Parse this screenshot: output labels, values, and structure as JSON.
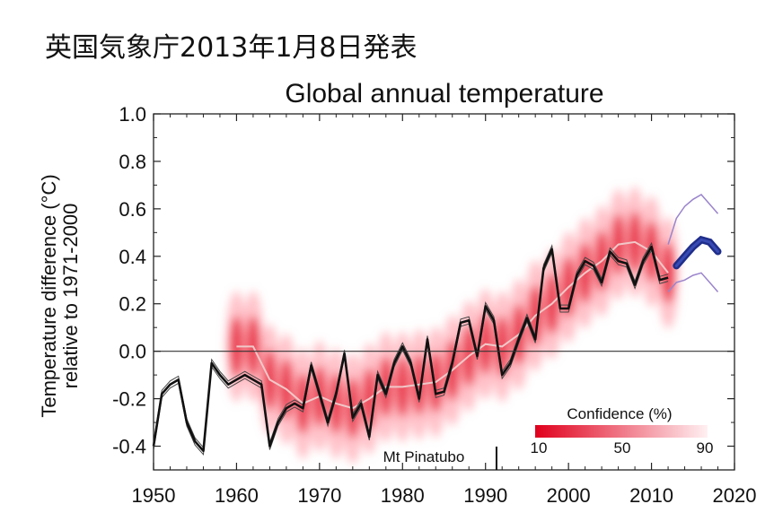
{
  "header": {
    "text": "英国気象庁2013年1月8日発表"
  },
  "chart_data": {
    "type": "line",
    "title": "Global annual temperature",
    "xlabel": "",
    "ylabel": "Temperature difference (°C) relative to 1971-2000",
    "ylabel_lines": [
      "Temperature difference (°C)",
      "relative to 1971-2000"
    ],
    "xlim": [
      1950,
      2020
    ],
    "ylim": [
      -0.5,
      1.0
    ],
    "x_ticks": [
      1950,
      1960,
      1970,
      1980,
      1990,
      2000,
      2010,
      2020
    ],
    "x_tick_labels": [
      "1950",
      "1960",
      "1970",
      "1980",
      "1990",
      "2000",
      "2010",
      "2020"
    ],
    "y_ticks": [
      -0.4,
      -0.2,
      0.0,
      0.2,
      0.4,
      0.6,
      0.8,
      1.0
    ],
    "y_tick_labels": [
      "-0.4",
      "-0.2",
      "0.0",
      "0.2",
      "0.4",
      "0.6",
      "0.8",
      "1.0"
    ],
    "zero_line": 0.0,
    "grid": false,
    "series": [
      {
        "kind": "observations",
        "color": "#111111",
        "x": [
          1950,
          1951,
          1952,
          1953,
          1954,
          1955,
          1956,
          1957,
          1958,
          1959,
          1960,
          1961,
          1962,
          1963,
          1964,
          1965,
          1966,
          1967,
          1968,
          1969,
          1970,
          1971,
          1972,
          1973,
          1974,
          1975,
          1976,
          1977,
          1978,
          1979,
          1980,
          1981,
          1982,
          1983,
          1984,
          1985,
          1986,
          1987,
          1988,
          1989,
          1990,
          1991,
          1992,
          1993,
          1994,
          1995,
          1996,
          1997,
          1998,
          1999,
          2000,
          2001,
          2002,
          2003,
          2004,
          2005,
          2006,
          2007,
          2008,
          2009,
          2010,
          2011,
          2012
        ],
        "y": [
          -0.4,
          -0.18,
          -0.14,
          -0.12,
          -0.3,
          -0.38,
          -0.42,
          -0.05,
          -0.1,
          -0.14,
          -0.12,
          -0.1,
          -0.12,
          -0.14,
          -0.4,
          -0.3,
          -0.24,
          -0.22,
          -0.24,
          -0.06,
          -0.18,
          -0.3,
          -0.18,
          -0.01,
          -0.28,
          -0.22,
          -0.36,
          -0.1,
          -0.18,
          -0.05,
          0.02,
          -0.05,
          -0.2,
          0.05,
          -0.18,
          -0.17,
          -0.05,
          0.12,
          0.13,
          -0.02,
          0.19,
          0.13,
          -0.1,
          -0.05,
          0.05,
          0.14,
          0.05,
          0.35,
          0.43,
          0.18,
          0.18,
          0.32,
          0.38,
          0.36,
          0.29,
          0.42,
          0.38,
          0.37,
          0.28,
          0.38,
          0.44,
          0.3,
          0.31
        ]
      },
      {
        "kind": "decadal-forecast",
        "color": "#4a5fd0",
        "x": [
          2013,
          2014,
          2015,
          2016,
          2017,
          2018
        ],
        "y": [
          0.36,
          0.4,
          0.44,
          0.47,
          0.46,
          0.42
        ]
      },
      {
        "kind": "forecast-range-upper",
        "color": "#9a84cc",
        "x": [
          2012,
          2013,
          2014,
          2015,
          2016,
          2017,
          2018
        ],
        "y": [
          0.45,
          0.56,
          0.61,
          0.64,
          0.66,
          0.62,
          0.58
        ]
      },
      {
        "kind": "forecast-range-lower",
        "color": "#9a84cc",
        "x": [
          2012,
          2013,
          2014,
          2015,
          2016,
          2017,
          2018
        ],
        "y": [
          0.25,
          0.29,
          0.3,
          0.32,
          0.33,
          0.29,
          0.25
        ]
      }
    ],
    "hindcast_mean": {
      "color": "#f0c8c8",
      "x": [
        1960,
        1962,
        1964,
        1966,
        1968,
        1970,
        1972,
        1974,
        1976,
        1978,
        1980,
        1982,
        1984,
        1986,
        1988,
        1990,
        1992,
        1994,
        1996,
        1998,
        2000,
        2002,
        2004,
        2006,
        2008,
        2010,
        2012
      ],
      "y": [
        0.02,
        0.02,
        -0.12,
        -0.16,
        -0.22,
        -0.19,
        -0.22,
        -0.24,
        -0.2,
        -0.15,
        -0.15,
        -0.14,
        -0.13,
        -0.08,
        -0.02,
        0.03,
        0.02,
        0.07,
        0.15,
        0.2,
        0.27,
        0.33,
        0.38,
        0.45,
        0.46,
        0.42,
        0.33
      ]
    },
    "annotations": [
      {
        "text": "Mt Pinatubo",
        "x": 1991,
        "y": -0.46
      }
    ],
    "legend": {
      "title": "Confidence (%)",
      "tick_labels": [
        "10",
        "50",
        "90"
      ],
      "placement": "bottom-right",
      "color_start": "#e0001c",
      "color_end": "#fff0f2"
    }
  }
}
